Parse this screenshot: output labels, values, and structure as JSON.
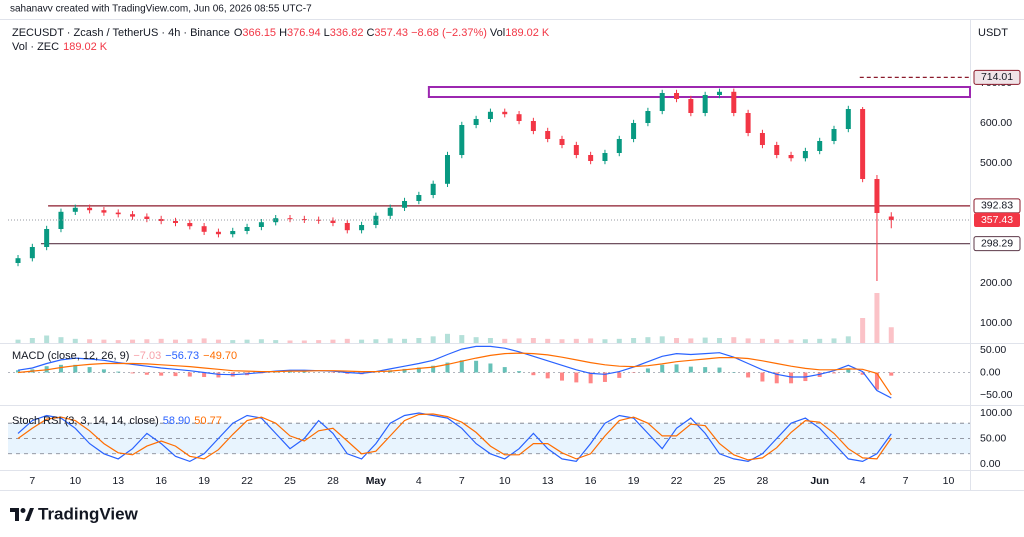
{
  "header": {
    "credit": "sahanavv created with TradingView.com, Jun 06, 2026 08:55 UTC-7",
    "symbol": "ZECUSDT · Zcash / TetherUS · 4h · Binance",
    "ohlc_labels": [
      "O",
      "H",
      "L",
      "C"
    ],
    "change": "−8.68 (−2.37%)",
    "vol_label": "Vol",
    "vol_value": "189.02 K",
    "volume_title": "Vol · ZEC",
    "volume_value": "189.02 K",
    "currency": "USDT"
  },
  "footer": {
    "brand": "TradingView"
  },
  "chart_data": {
    "type": "candlestick",
    "up_color": "#089981",
    "down_color": "#f23645",
    "x": [
      -1,
      0,
      1,
      2,
      3,
      4,
      5,
      6,
      7,
      8,
      9,
      10,
      11,
      12,
      13,
      14,
      15,
      16,
      17,
      18,
      19,
      20,
      21,
      22,
      23,
      24,
      25,
      26,
      27,
      28,
      29,
      30,
      31,
      32,
      33,
      34,
      35,
      36,
      37,
      38,
      39,
      40,
      41,
      42,
      43,
      44,
      45,
      46,
      47,
      48,
      49,
      50,
      51,
      52,
      53,
      54,
      55,
      56,
      57,
      58,
      59,
      60
    ],
    "open": [
      250,
      262,
      290,
      335,
      378,
      388,
      382,
      376,
      372,
      366,
      360,
      355,
      350,
      342,
      328,
      322,
      330,
      340,
      352,
      362,
      360,
      358,
      356,
      350,
      332,
      345,
      368,
      388,
      405,
      420,
      448,
      520,
      595,
      610,
      628,
      622,
      605,
      580,
      560,
      545,
      520,
      505,
      525,
      560,
      600,
      630,
      675,
      660,
      625,
      670,
      678,
      625,
      575,
      545,
      520,
      512,
      530,
      555,
      585,
      635,
      460,
      366.15
    ],
    "high": [
      270,
      298,
      343,
      386,
      396,
      396,
      390,
      384,
      380,
      374,
      368,
      363,
      358,
      350,
      336,
      338,
      348,
      360,
      370,
      370,
      368,
      366,
      364,
      358,
      353,
      376,
      396,
      413,
      428,
      456,
      528,
      603,
      618,
      636,
      636,
      630,
      613,
      588,
      568,
      553,
      528,
      533,
      568,
      608,
      638,
      683,
      683,
      668,
      678,
      686,
      686,
      633,
      583,
      553,
      528,
      538,
      563,
      593,
      643,
      640,
      470,
      376.94
    ],
    "low": [
      242,
      254,
      282,
      327,
      370,
      374,
      368,
      364,
      358,
      352,
      347,
      342,
      334,
      320,
      314,
      314,
      322,
      332,
      344,
      352,
      350,
      348,
      342,
      324,
      324,
      337,
      360,
      380,
      397,
      412,
      440,
      512,
      587,
      602,
      614,
      597,
      572,
      552,
      537,
      512,
      497,
      497,
      517,
      552,
      592,
      622,
      652,
      617,
      617,
      662,
      617,
      567,
      537,
      512,
      504,
      504,
      522,
      547,
      577,
      452,
      205,
      336.82
    ],
    "close": [
      262,
      290,
      335,
      378,
      388,
      382,
      376,
      372,
      366,
      360,
      355,
      350,
      342,
      328,
      322,
      330,
      340,
      352,
      362,
      360,
      358,
      356,
      350,
      332,
      345,
      368,
      388,
      405,
      420,
      448,
      520,
      595,
      610,
      628,
      622,
      605,
      580,
      560,
      545,
      520,
      505,
      525,
      560,
      600,
      630,
      675,
      660,
      625,
      670,
      678,
      625,
      575,
      545,
      520,
      512,
      530,
      555,
      585,
      635,
      460,
      375,
      357.43
    ],
    "volume": [
      40,
      60,
      90,
      70,
      50,
      45,
      40,
      35,
      40,
      45,
      50,
      40,
      45,
      55,
      40,
      35,
      40,
      45,
      35,
      30,
      30,
      35,
      40,
      50,
      40,
      45,
      55,
      50,
      60,
      80,
      110,
      95,
      70,
      60,
      50,
      55,
      60,
      50,
      45,
      50,
      55,
      45,
      50,
      60,
      70,
      80,
      60,
      55,
      65,
      60,
      70,
      55,
      50,
      45,
      40,
      45,
      50,
      55,
      80,
      300,
      600,
      189.02
    ],
    "xlim": [
      -1.7,
      65.5
    ],
    "xticks": [
      {
        "value": 0,
        "label": "7"
      },
      {
        "value": 3,
        "label": "10"
      },
      {
        "value": 6,
        "label": "13"
      },
      {
        "value": 9,
        "label": "16"
      },
      {
        "value": 12,
        "label": "19"
      },
      {
        "value": 15,
        "label": "22"
      },
      {
        "value": 18,
        "label": "25"
      },
      {
        "value": 21,
        "label": "28"
      },
      {
        "value": 24,
        "label": "May"
      },
      {
        "value": 27,
        "label": "4"
      },
      {
        "value": 30,
        "label": "7"
      },
      {
        "value": 33,
        "label": "10"
      },
      {
        "value": 36,
        "label": "13"
      },
      {
        "value": 39,
        "label": "16"
      },
      {
        "value": 42,
        "label": "19"
      },
      {
        "value": 45,
        "label": "22"
      },
      {
        "value": 48,
        "label": "25"
      },
      {
        "value": 51,
        "label": "28"
      },
      {
        "value": 55,
        "label": "Jun"
      },
      {
        "value": 58,
        "label": "4"
      },
      {
        "value": 61,
        "label": "7"
      },
      {
        "value": 64,
        "label": "10"
      }
    ],
    "ylim": [
      50,
      845
    ],
    "yticks": [
      {
        "value": 100,
        "label": "100.00"
      },
      {
        "value": 200,
        "label": "200.00"
      },
      {
        "value": 500,
        "label": "500.00"
      },
      {
        "value": 600,
        "label": "600.00"
      },
      {
        "value": 700,
        "label": "700.00"
      }
    ],
    "levels": [
      {
        "value": 714.01,
        "label": "714.01",
        "from": 57.8,
        "color": "#8b1a2b",
        "style": "dashed"
      },
      {
        "value": 392.83,
        "label": "392.83",
        "from": 1.1,
        "color": "#8b1a2b",
        "style": "solid"
      },
      {
        "value": 298.29,
        "label": "298.29",
        "from": 0.6,
        "color": "#5d3a4a",
        "style": "solid"
      }
    ],
    "zone": {
      "low": 665,
      "high": 690,
      "from": 27.7,
      "color": "#9c27b0"
    },
    "indicators": [
      {
        "type": "macd",
        "title": "MACD (close, 12, 26, 9)",
        "macd_color": "#2962ff",
        "signal_color": "#ff6d00",
        "macd": [
          5,
          10,
          20,
          28,
          32,
          30,
          27,
          22,
          18,
          14,
          10,
          7,
          4,
          0,
          -4,
          -5,
          -3,
          0,
          3,
          5,
          5,
          4,
          3,
          0,
          -2,
          2,
          8,
          14,
          20,
          27,
          40,
          52,
          58,
          58,
          54,
          46,
          36,
          26,
          16,
          6,
          -2,
          -4,
          2,
          12,
          24,
          36,
          42,
          40,
          42,
          44,
          34,
          20,
          6,
          -4,
          -10,
          -10,
          -4,
          4,
          16,
          2,
          -40,
          -56.73
        ],
        "signal": [
          0,
          3,
          6,
          11,
          15,
          18,
          20,
          20,
          20,
          19,
          17,
          15,
          13,
          10,
          7,
          4,
          3,
          2,
          2,
          3,
          3,
          4,
          4,
          3,
          2,
          2,
          3,
          6,
          9,
          12,
          18,
          25,
          32,
          38,
          42,
          43,
          42,
          39,
          34,
          28,
          22,
          17,
          14,
          13,
          15,
          19,
          24,
          27,
          30,
          33,
          33,
          31,
          26,
          20,
          14,
          9,
          6,
          6,
          8,
          7,
          -2,
          -49.7
        ],
        "hist": [
          5,
          7,
          14,
          17,
          17,
          12,
          7,
          2,
          -2,
          -5,
          -7,
          -8,
          -9,
          -10,
          -11,
          -9,
          -6,
          -2,
          1,
          2,
          2,
          0,
          -1,
          -3,
          -4,
          0,
          5,
          8,
          11,
          15,
          22,
          27,
          26,
          20,
          12,
          3,
          -6,
          -13,
          -18,
          -22,
          -24,
          -21,
          -12,
          -1,
          9,
          17,
          18,
          13,
          12,
          11,
          1,
          -11,
          -20,
          -24,
          -24,
          -19,
          -10,
          -2,
          8,
          -5,
          -38,
          -7.03
        ],
        "value_labels": {
          "hist": "−7.03",
          "macd": "−56.73",
          "signal": "−49.70"
        },
        "ylim": [
          -72.2,
          63.3
        ],
        "yticks": [
          {
            "value": 50,
            "label": "50.00"
          },
          {
            "value": 0,
            "label": "0.00"
          },
          {
            "value": -50,
            "label": "−50.00"
          }
        ]
      },
      {
        "type": "stoch_rsi",
        "title": "Stoch RSI (3, 3, 14, 14, close)",
        "k_color": "#2962ff",
        "d_color": "#ff6d00",
        "k": [
          60,
          85,
          95,
          90,
          70,
          40,
          20,
          10,
          30,
          60,
          40,
          15,
          5,
          20,
          50,
          80,
          95,
          90,
          60,
          30,
          50,
          85,
          60,
          20,
          10,
          40,
          80,
          95,
          100,
          95,
          90,
          70,
          40,
          20,
          10,
          30,
          60,
          30,
          10,
          5,
          40,
          80,
          95,
          90,
          60,
          30,
          70,
          90,
          60,
          20,
          10,
          5,
          20,
          50,
          80,
          90,
          70,
          40,
          10,
          5,
          20,
          58.9
        ],
        "d": [
          50,
          70,
          88,
          92,
          85,
          65,
          40,
          22,
          18,
          35,
          45,
          35,
          15,
          10,
          28,
          58,
          85,
          92,
          80,
          55,
          45,
          65,
          70,
          45,
          20,
          25,
          55,
          85,
          97,
          98,
          93,
          82,
          62,
          35,
          18,
          18,
          40,
          40,
          22,
          10,
          20,
          55,
          85,
          92,
          80,
          55,
          55,
          78,
          75,
          40,
          18,
          8,
          12,
          32,
          62,
          85,
          82,
          60,
          30,
          12,
          10,
          50.77
        ],
        "value_labels": {
          "k": "58.90",
          "d": "50.77"
        },
        "band": [
          20,
          80
        ],
        "midline": 50,
        "ylim": [
          -11.8,
          113.7
        ],
        "yticks": [
          {
            "value": 100,
            "label": "100.00"
          },
          {
            "value": 50,
            "label": "50.00"
          },
          {
            "value": 0,
            "label": "0.00"
          }
        ]
      }
    ]
  }
}
